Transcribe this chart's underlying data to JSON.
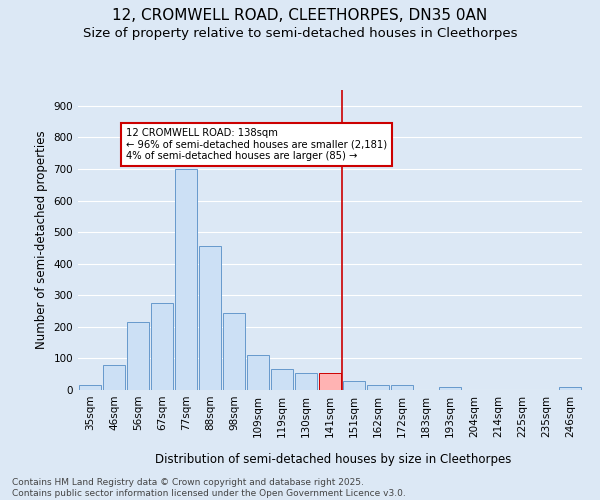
{
  "title": "12, CROMWELL ROAD, CLEETHORPES, DN35 0AN",
  "subtitle": "Size of property relative to semi-detached houses in Cleethorpes",
  "xlabel": "Distribution of semi-detached houses by size in Cleethorpes",
  "ylabel": "Number of semi-detached properties",
  "footer_line1": "Contains HM Land Registry data © Crown copyright and database right 2025.",
  "footer_line2": "Contains public sector information licensed under the Open Government Licence v3.0.",
  "categories": [
    "35sqm",
    "46sqm",
    "56sqm",
    "67sqm",
    "77sqm",
    "88sqm",
    "98sqm",
    "109sqm",
    "119sqm",
    "130sqm",
    "141sqm",
    "151sqm",
    "162sqm",
    "172sqm",
    "183sqm",
    "193sqm",
    "204sqm",
    "214sqm",
    "225sqm",
    "235sqm",
    "246sqm"
  ],
  "values": [
    15,
    80,
    215,
    275,
    700,
    455,
    245,
    110,
    65,
    55,
    55,
    30,
    15,
    15,
    0,
    10,
    0,
    0,
    0,
    0,
    8
  ],
  "bar_color": "#cce0f5",
  "bar_edge_color": "#6699cc",
  "highlight_index": 10,
  "highlight_bar_color": "#ffb3b3",
  "highlight_bar_edge_color": "#cc0000",
  "vline_color": "#cc0000",
  "annotation_text": "12 CROMWELL ROAD: 138sqm\n← 96% of semi-detached houses are smaller (2,181)\n4% of semi-detached houses are larger (85) →",
  "annotation_box_color": "#ffffff",
  "annotation_box_edge_color": "#cc0000",
  "ylim": [
    0,
    950
  ],
  "yticks": [
    0,
    100,
    200,
    300,
    400,
    500,
    600,
    700,
    800,
    900
  ],
  "background_color": "#dce8f5",
  "plot_bg_color": "#dce8f5",
  "grid_color": "#ffffff",
  "title_fontsize": 11,
  "subtitle_fontsize": 9.5,
  "tick_fontsize": 7.5,
  "label_fontsize": 8.5,
  "footer_fontsize": 6.5
}
